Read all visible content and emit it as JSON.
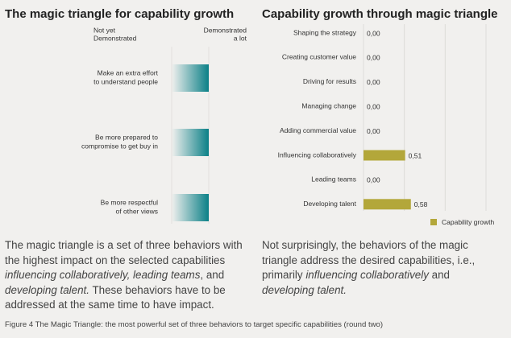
{
  "left_panel": {
    "title": "The magic triangle for capability growth",
    "column_labels": [
      [
        "Not yet",
        "Demonstrated"
      ],
      [
        "Demonstrated",
        "a lot"
      ]
    ],
    "behaviors": [
      [
        "Make an extra effort",
        "to understand people"
      ],
      [
        "Be more prepared to",
        "compromise to get buy in"
      ],
      [
        "Be more respectful",
        "of other views"
      ]
    ]
  },
  "chart_data": {
    "type": "hbar",
    "title": "Capability growth through magic triangle",
    "categories": [
      "Shaping the strategy",
      "Creating customer value",
      "Driving for results",
      "Managing change",
      "Adding commercial value",
      "Influencing collaboratively",
      "Leading teams",
      "Developing talent"
    ],
    "series": [
      {
        "name": "Capability growth",
        "color": "#b3a73a",
        "values": [
          0,
          0,
          0,
          0,
          0,
          0.51,
          0,
          0.58
        ],
        "value_labels": [
          "0,00",
          "0,00",
          "0,00",
          "0,00",
          "0,00",
          "0,51",
          "0,00",
          "0,58"
        ]
      }
    ],
    "xlim": [
      0,
      1.5
    ],
    "grid": true,
    "legend": "bottom-right"
  },
  "paragraphs": [
    [
      {
        "text": "The magic triangle is a set of three behaviors with the highest impact on the selected capabilities "
      },
      {
        "text": "influencing collaboratively, leading teams",
        "em": true
      },
      {
        "text": ", and "
      },
      {
        "text": "developing talent.",
        "em": true
      },
      {
        "text": " These behaviors have to be addressed at the same time to have impact."
      }
    ],
    [
      {
        "text": "Not surprisingly, the behaviors of the magic triangle address the desired capabilities, i.e., primarily "
      },
      {
        "text": "influencing collaboratively",
        "em": true
      },
      {
        "text": " and "
      },
      {
        "text": "developing talent.",
        "em": true
      }
    ]
  ],
  "caption": "Figure 4 The Magic Triangle: the most powerful set of three behaviors to target specific capabilities (round two)"
}
